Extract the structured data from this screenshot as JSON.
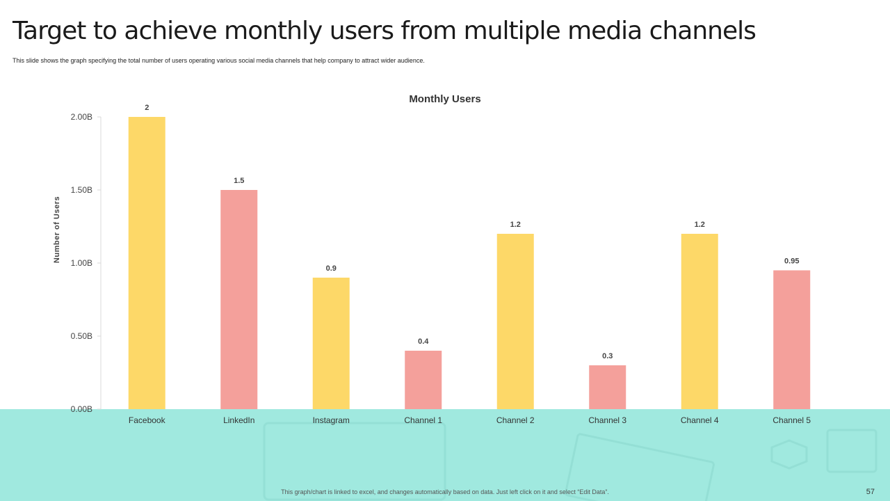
{
  "slide": {
    "title": "Target to achieve monthly users from multiple media channels",
    "subtitle": "This slide shows the graph specifying the total number of users operating various social media  channels that help  company to attract wider audience.",
    "footnote": "This graph/chart is linked to excel, and changes automatically based on data. Just left click on it and select “Edit Data”.",
    "page_number": "57"
  },
  "colors": {
    "yellow": "#fdd868",
    "pink": "#f4a09b",
    "band": "#a0e9df",
    "axis": "#d9d9d9"
  },
  "chart_data": {
    "type": "bar",
    "title": "Monthly  Users",
    "xlabel": "",
    "ylabel": "Number of Users",
    "categories": [
      "Facebook",
      "LinkedIn",
      "Instagram",
      "Channel 1",
      "Channel 2",
      "Channel 3",
      "Channel 4",
      "Channel 5"
    ],
    "values": [
      2,
      1.5,
      0.9,
      0.4,
      1.2,
      0.3,
      1.2,
      0.95
    ],
    "value_labels": [
      "2",
      "1.5",
      "0.9",
      "0.4",
      "1.2",
      "0.3",
      "1.2",
      "0.95"
    ],
    "bar_colors": [
      "yellow",
      "pink",
      "yellow",
      "pink",
      "yellow",
      "pink",
      "yellow",
      "pink"
    ],
    "ylim": [
      0,
      2
    ],
    "yticks": [
      0,
      0.5,
      1,
      1.5,
      2
    ],
    "ytick_labels": [
      "0.00B",
      "0.50B",
      "1.00B",
      "1.50B",
      "2.00B"
    ],
    "grid": false,
    "legend": "none"
  }
}
